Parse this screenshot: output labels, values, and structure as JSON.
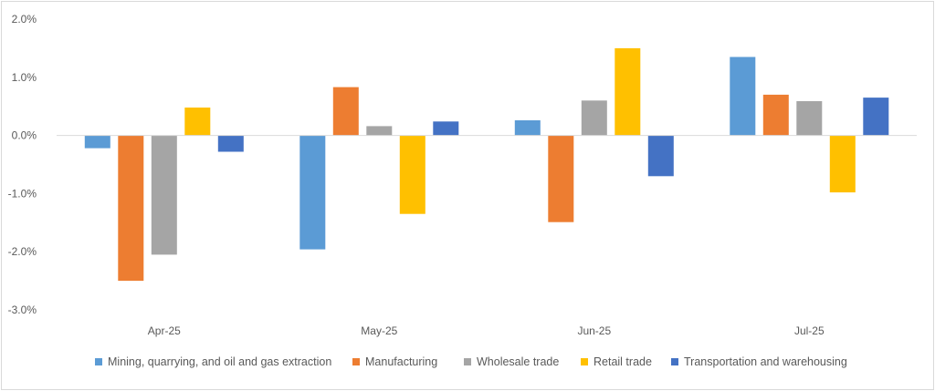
{
  "chart_data": {
    "type": "bar",
    "title": "",
    "xlabel": "",
    "ylabel": "",
    "categories": [
      "Apr-25",
      "May-25",
      "Jun-25",
      "Jul-25"
    ],
    "ylim": [
      -3.0,
      2.0
    ],
    "yticks": [
      "2.0%",
      "1.0%",
      "0.0%",
      "-1.0%",
      "-2.0%",
      "-3.0%"
    ],
    "ytick_values": [
      2.0,
      1.0,
      0.0,
      -1.0,
      -2.0,
      -3.0
    ],
    "grid": false,
    "legend_position": "bottom",
    "series": [
      {
        "name": "Mining, quarrying, and oil and gas extraction",
        "color": "#5B9BD5",
        "values": [
          -0.22,
          -1.96,
          0.26,
          1.35
        ]
      },
      {
        "name": "Manufacturing",
        "color": "#ED7D31",
        "values": [
          -2.5,
          0.83,
          -1.49,
          0.7
        ]
      },
      {
        "name": "Wholesale trade",
        "color": "#A5A5A5",
        "values": [
          -2.05,
          0.16,
          0.6,
          0.59
        ]
      },
      {
        "name": "Retail trade",
        "color": "#FFC000",
        "values": [
          0.48,
          -1.35,
          1.5,
          -0.98
        ]
      },
      {
        "name": "Transportation and warehousing",
        "color": "#4472C4",
        "values": [
          -0.28,
          0.24,
          -0.7,
          0.65
        ]
      }
    ]
  }
}
